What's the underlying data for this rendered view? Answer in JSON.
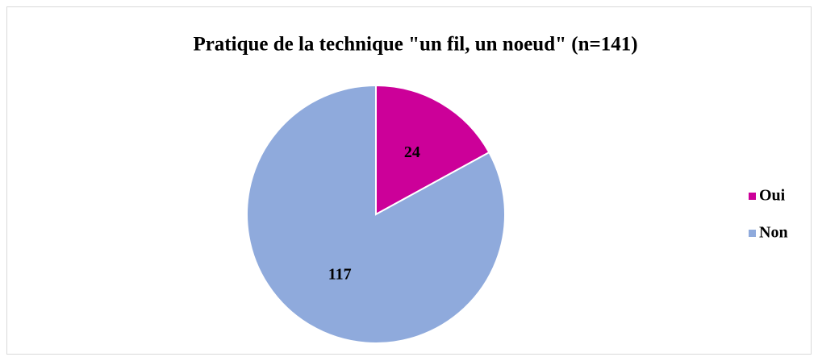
{
  "chart_data": {
    "type": "pie",
    "title": "Pratique de la technique \"un fil, un noeud\" (n=141)",
    "categories": [
      "Oui",
      "Non"
    ],
    "values": [
      24,
      117
    ],
    "colors": [
      "#cc0099",
      "#8faadc"
    ],
    "legend": "right"
  }
}
